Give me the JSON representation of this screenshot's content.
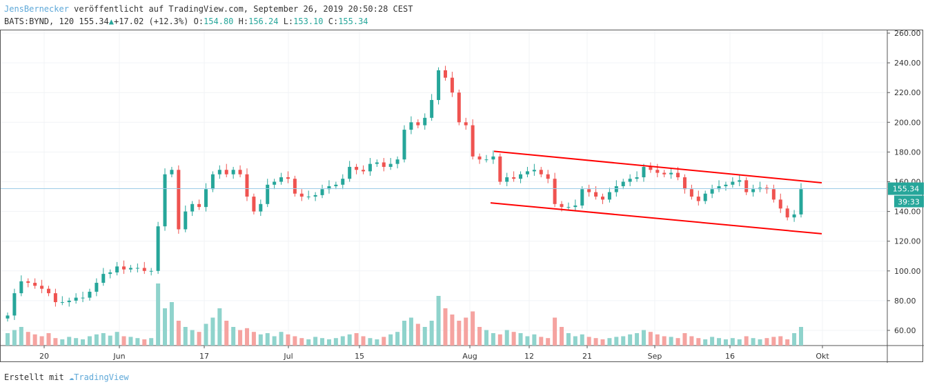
{
  "header": {
    "author": "JensBernecker",
    "published": "veröffentlicht auf TradingView.com, September 26, 2019 20:50:28 CEST",
    "symbol": "BATS:BYND, 120",
    "last": "155.34",
    "change": "+17.02 (+12.3%)",
    "o_label": "O:",
    "o": "154.80",
    "h_label": "H:",
    "h": "156.24",
    "l_label": "L:",
    "l": "153.10",
    "c_label": "C:",
    "c": "155.34"
  },
  "colors": {
    "up": "#26a69a",
    "down": "#ef5350",
    "vol_up": "#8fd3cc",
    "vol_down": "#f5a3a0",
    "trendline": "#ff0000",
    "price_line": "#9ccbe6"
  },
  "footer": {
    "text": "Erstellt mit",
    "brand": "TradingView"
  },
  "chart_data": {
    "type": "candlestick",
    "yaxis": {
      "ticks": [
        60,
        80,
        100,
        120,
        140,
        160,
        180,
        200,
        220,
        240,
        260
      ],
      "tick_labels": [
        "60.00",
        "80.00",
        "100.00",
        "120.00",
        "140.00",
        "160.00",
        "180.00",
        "200.00",
        "220.00",
        "240.00",
        "260.00"
      ],
      "range": [
        55,
        262
      ]
    },
    "xaxis": {
      "tick_labels": [
        "20",
        "Jun",
        "17",
        "Jul",
        "15",
        "Aug",
        "12",
        "21",
        "Sep",
        "16",
        "Okt"
      ]
    },
    "last_price_label": "155.34",
    "countdown_label": "39:33",
    "grid": true,
    "closes": [
      70,
      85,
      93,
      92,
      90,
      88,
      85,
      79,
      79,
      80,
      82,
      82,
      86,
      92,
      98,
      99,
      103,
      101,
      102,
      102,
      100,
      100,
      130,
      165,
      168,
      128,
      140,
      145,
      143,
      155,
      165,
      168,
      165,
      168,
      165,
      150,
      140,
      145,
      158,
      160,
      163,
      162,
      152,
      150,
      150,
      151,
      155,
      157,
      158,
      162,
      170,
      168,
      167,
      172,
      173,
      170,
      172,
      175,
      195,
      200,
      198,
      203,
      215,
      235,
      230,
      220,
      200,
      198,
      177,
      175,
      175,
      177,
      160,
      163,
      162,
      165,
      167,
      168,
      165,
      162,
      145,
      143,
      143,
      144,
      155,
      153,
      150,
      148,
      153,
      157,
      160,
      162,
      163,
      170,
      168,
      166,
      165,
      166,
      163,
      155,
      150,
      147,
      152,
      155,
      157,
      158,
      160,
      161,
      153,
      155,
      156,
      155,
      148,
      142,
      136,
      138,
      155
    ],
    "volumes": [
      20,
      25,
      30,
      22,
      18,
      15,
      20,
      12,
      10,
      14,
      12,
      10,
      15,
      18,
      20,
      16,
      22,
      15,
      14,
      12,
      10,
      12,
      100,
      60,
      70,
      40,
      30,
      25,
      22,
      35,
      45,
      60,
      40,
      30,
      25,
      28,
      22,
      18,
      20,
      15,
      22,
      18,
      15,
      12,
      10,
      14,
      12,
      10,
      12,
      15,
      18,
      20,
      15,
      12,
      10,
      14,
      18,
      22,
      40,
      45,
      35,
      30,
      40,
      80,
      60,
      50,
      40,
      45,
      55,
      30,
      25,
      20,
      18,
      25,
      22,
      20,
      15,
      18,
      14,
      12,
      45,
      30,
      20,
      15,
      18,
      14,
      12,
      10,
      12,
      14,
      15,
      18,
      20,
      25,
      22,
      18,
      15,
      14,
      12,
      20,
      15,
      12,
      10,
      14,
      12,
      10,
      12,
      10,
      15,
      12,
      10,
      12,
      14,
      15,
      10,
      20,
      30
    ],
    "trendlines": [
      {
        "from": [
          "Aug 5",
          180.5
        ],
        "to": [
          "Okt 1",
          159.3
        ]
      },
      {
        "from": [
          "Aug 5",
          145.8
        ],
        "to": [
          "Okt 1",
          125.0
        ]
      }
    ]
  }
}
